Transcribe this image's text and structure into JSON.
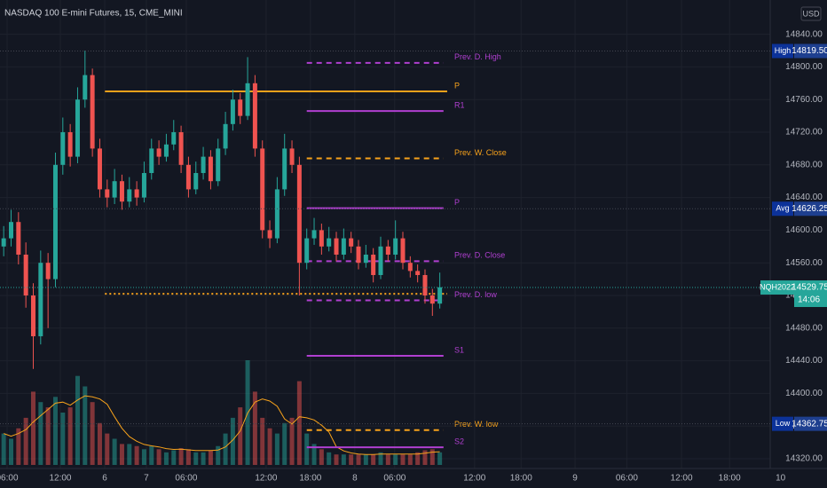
{
  "chart_data": {
    "type": "candlestick",
    "title": "NASDAQ 100 E-mini Futures, 15, CME_MINI",
    "currency": "USD",
    "up_color": "#26a69a",
    "down_color": "#ef5350",
    "grid": true,
    "open": [
      14580,
      14590,
      14610,
      14570,
      14520,
      14470,
      14560,
      14540,
      14680,
      14720,
      14690,
      14760,
      14790,
      14700,
      14650,
      14640,
      14660,
      14635,
      14650,
      14640,
      14670,
      14700,
      14690,
      14705,
      14720,
      14680,
      14650,
      14670,
      14690,
      14660,
      14700,
      14730,
      14760,
      14740,
      14780,
      14700,
      14600,
      14590,
      14650,
      14700,
      14680,
      14560,
      14590,
      14600,
      14580,
      14590,
      14570,
      14590,
      14580,
      14560,
      14570,
      14545,
      14580,
      14570,
      14590,
      14560,
      14550,
      14545,
      14520,
      14510
    ],
    "high": [
      14605,
      14625,
      14622,
      14585,
      14535,
      14575,
      14572,
      14695,
      14738,
      14730,
      14775,
      14820,
      14798,
      14712,
      14662,
      14675,
      14668,
      14665,
      14660,
      14684,
      14712,
      14710,
      14718,
      14735,
      14728,
      14690,
      14684,
      14702,
      14698,
      14712,
      14745,
      14772,
      14768,
      14812,
      14790,
      14710,
      14612,
      14665,
      14718,
      14710,
      14690,
      14602,
      14615,
      14608,
      14604,
      14598,
      14602,
      14598,
      14588,
      14582,
      14578,
      14592,
      14588,
      14612,
      14598,
      14568,
      14558,
      14552,
      14528,
      14548
    ],
    "low": [
      14568,
      14580,
      14558,
      14505,
      14430,
      14460,
      14480,
      14530,
      14668,
      14678,
      14682,
      14750,
      14690,
      14640,
      14628,
      14632,
      14625,
      14628,
      14630,
      14634,
      14662,
      14680,
      14684,
      14698,
      14670,
      14640,
      14644,
      14662,
      14650,
      14654,
      14692,
      14722,
      14730,
      14735,
      14690,
      14590,
      14578,
      14584,
      14642,
      14670,
      14520,
      14552,
      14582,
      14570,
      14574,
      14562,
      14564,
      14572,
      14552,
      14554,
      14536,
      14540,
      14562,
      14564,
      14552,
      14542,
      14536,
      14510,
      14495,
      14504
    ],
    "close": [
      14590,
      14610,
      14570,
      14520,
      14470,
      14560,
      14540,
      14680,
      14720,
      14690,
      14760,
      14790,
      14700,
      14650,
      14640,
      14660,
      14635,
      14650,
      14640,
      14670,
      14700,
      14690,
      14705,
      14720,
      14680,
      14650,
      14670,
      14690,
      14660,
      14700,
      14730,
      14760,
      14740,
      14780,
      14700,
      14600,
      14590,
      14650,
      14700,
      14680,
      14560,
      14590,
      14600,
      14580,
      14590,
      14570,
      14590,
      14580,
      14560,
      14570,
      14545,
      14580,
      14570,
      14590,
      14560,
      14550,
      14545,
      14520,
      14510,
      14530
    ],
    "volume": [
      30,
      25,
      35,
      45,
      70,
      60,
      55,
      65,
      50,
      55,
      85,
      75,
      60,
      40,
      30,
      25,
      20,
      20,
      18,
      15,
      18,
      15,
      12,
      14,
      16,
      15,
      12,
      12,
      14,
      18,
      30,
      45,
      55,
      100,
      70,
      45,
      35,
      30,
      40,
      45,
      80,
      30,
      20,
      15,
      12,
      10,
      10,
      10,
      10,
      10,
      10,
      12,
      10,
      10,
      10,
      10,
      12,
      14,
      15,
      12
    ],
    "ylim": [
      14308,
      14882
    ],
    "yticks": [
      {
        "value": 14320,
        "label": "14320.00"
      },
      {
        "value": 14360,
        "label": "14360.00"
      },
      {
        "value": 14400,
        "label": "14400.00"
      },
      {
        "value": 14440,
        "label": "14440.00"
      },
      {
        "value": 14480,
        "label": "14480.00"
      },
      {
        "value": 14520,
        "label": "14520.00"
      },
      {
        "value": 14560,
        "label": "14560.00"
      },
      {
        "value": 14600,
        "label": "14600.00"
      },
      {
        "value": 14640,
        "label": "14640.00"
      },
      {
        "value": 14680,
        "label": "14680.00"
      },
      {
        "value": 14720,
        "label": "14720.00"
      },
      {
        "value": 14760,
        "label": "14760.00"
      },
      {
        "value": 14800,
        "label": "14800.00"
      },
      {
        "value": 14840,
        "label": "14840.00"
      }
    ],
    "xlim": [
      -0.5,
      103.7
    ],
    "xticks": [
      {
        "value": 0.46,
        "label": "06:00"
      },
      {
        "value": 7.66,
        "label": "12:00"
      },
      {
        "value": 13.67,
        "label": "6"
      },
      {
        "value": 19.3,
        "label": "7"
      },
      {
        "value": 24.7,
        "label": "06:00"
      },
      {
        "value": 35.5,
        "label": "12:00"
      },
      {
        "value": 41.5,
        "label": "18:00"
      },
      {
        "value": 47.5,
        "label": "8"
      },
      {
        "value": 52.9,
        "label": "06:00"
      },
      {
        "value": 63.7,
        "label": "12:00"
      },
      {
        "value": 70,
        "label": "18:00"
      },
      {
        "value": 77.3,
        "label": "9"
      },
      {
        "value": 84.3,
        "label": "06:00"
      },
      {
        "value": 91.7,
        "label": "12:00"
      },
      {
        "value": 98.2,
        "label": "18:00"
      },
      {
        "value": 105.1,
        "label": "10"
      }
    ],
    "levels": [
      {
        "label": "Prev. D. High",
        "value": 14805,
        "color": "#b03fd0",
        "style": "dashed",
        "start": 41,
        "end": 59.5
      },
      {
        "label": "P",
        "value": 14770,
        "color": "#f7a21b",
        "style": "solid",
        "start": 13.7,
        "end": 60
      },
      {
        "label": "R1",
        "value": 14746,
        "color": "#b03fd0",
        "style": "solid",
        "start": 41,
        "end": 59.5
      },
      {
        "label": "Prev. W. Close",
        "value": 14688,
        "color": "#f7a21b",
        "style": "dashed",
        "start": 41,
        "end": 59.5
      },
      {
        "label": "P",
        "value": 14627,
        "color": "#b03fd0",
        "style": "solid",
        "start": 41,
        "end": 59.5
      },
      {
        "label": "Prev. D. Close",
        "value": 14562,
        "color": "#b03fd0",
        "style": "dashed",
        "start": 41,
        "end": 59.5
      },
      {
        "label": null,
        "value": 14522,
        "color": "#f7a21b",
        "style": "dotted",
        "start": 13.7,
        "end": 60
      },
      {
        "label": "Prev. D. low",
        "value": 14514,
        "color": "#b03fd0",
        "style": "dashed",
        "start": 41,
        "end": 59.5
      },
      {
        "label": "S1",
        "value": 14446,
        "color": "#b03fd0",
        "style": "solid",
        "start": 41,
        "end": 59.5
      },
      {
        "label": "Prev. W. low",
        "value": 14355,
        "color": "#f7a21b",
        "style": "dashed",
        "start": 41,
        "end": 59.5
      },
      {
        "label": "S2",
        "value": 14334,
        "color": "#b03fd0",
        "style": "solid",
        "start": 41,
        "end": 59.5
      }
    ],
    "markers": [
      {
        "name": "High",
        "value": 14819.5,
        "label": "14819.50"
      },
      {
        "name": "Avg",
        "value": 14626.25,
        "label": "14626.25"
      },
      {
        "name": "Low",
        "value": 14362.75,
        "label": "14362.75"
      }
    ],
    "last": {
      "name": "NQH2022",
      "value": 14529.75,
      "label": "14529.75",
      "countdown": "14:06",
      "color": "#26a69a"
    }
  }
}
